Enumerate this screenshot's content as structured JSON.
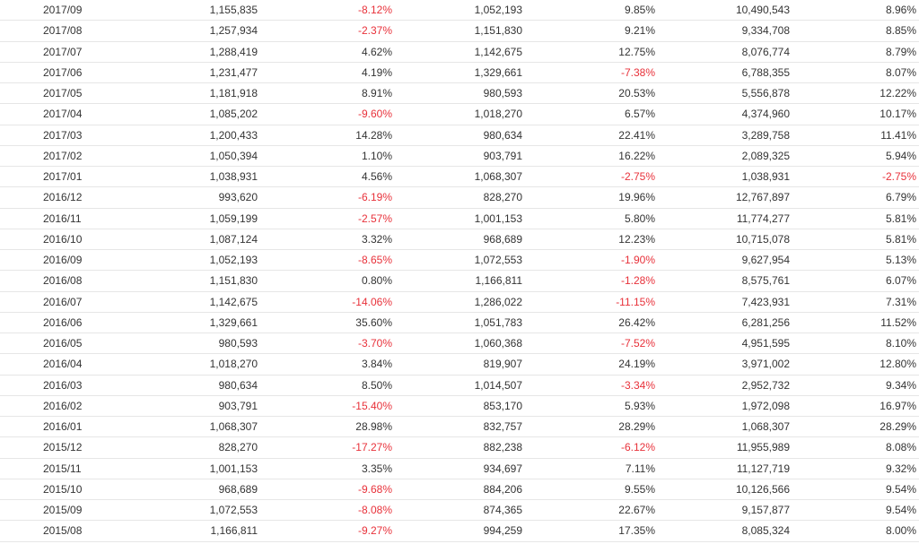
{
  "table": {
    "rows": [
      {
        "month": "2017/09",
        "revenue": "1,155,835",
        "mom": "-8.12%",
        "last_year": "1,052,193",
        "yoy": "9.85%",
        "cumulative": "10,490,543",
        "cum_yoy": "8.96%"
      },
      {
        "month": "2017/08",
        "revenue": "1,257,934",
        "mom": "-2.37%",
        "last_year": "1,151,830",
        "yoy": "9.21%",
        "cumulative": "9,334,708",
        "cum_yoy": "8.85%"
      },
      {
        "month": "2017/07",
        "revenue": "1,288,419",
        "mom": "4.62%",
        "last_year": "1,142,675",
        "yoy": "12.75%",
        "cumulative": "8,076,774",
        "cum_yoy": "8.79%"
      },
      {
        "month": "2017/06",
        "revenue": "1,231,477",
        "mom": "4.19%",
        "last_year": "1,329,661",
        "yoy": "-7.38%",
        "cumulative": "6,788,355",
        "cum_yoy": "8.07%"
      },
      {
        "month": "2017/05",
        "revenue": "1,181,918",
        "mom": "8.91%",
        "last_year": "980,593",
        "yoy": "20.53%",
        "cumulative": "5,556,878",
        "cum_yoy": "12.22%"
      },
      {
        "month": "2017/04",
        "revenue": "1,085,202",
        "mom": "-9.60%",
        "last_year": "1,018,270",
        "yoy": "6.57%",
        "cumulative": "4,374,960",
        "cum_yoy": "10.17%"
      },
      {
        "month": "2017/03",
        "revenue": "1,200,433",
        "mom": "14.28%",
        "last_year": "980,634",
        "yoy": "22.41%",
        "cumulative": "3,289,758",
        "cum_yoy": "11.41%"
      },
      {
        "month": "2017/02",
        "revenue": "1,050,394",
        "mom": "1.10%",
        "last_year": "903,791",
        "yoy": "16.22%",
        "cumulative": "2,089,325",
        "cum_yoy": "5.94%"
      },
      {
        "month": "2017/01",
        "revenue": "1,038,931",
        "mom": "4.56%",
        "last_year": "1,068,307",
        "yoy": "-2.75%",
        "cumulative": "1,038,931",
        "cum_yoy": "-2.75%"
      },
      {
        "month": "2016/12",
        "revenue": "993,620",
        "mom": "-6.19%",
        "last_year": "828,270",
        "yoy": "19.96%",
        "cumulative": "12,767,897",
        "cum_yoy": "6.79%"
      },
      {
        "month": "2016/11",
        "revenue": "1,059,199",
        "mom": "-2.57%",
        "last_year": "1,001,153",
        "yoy": "5.80%",
        "cumulative": "11,774,277",
        "cum_yoy": "5.81%"
      },
      {
        "month": "2016/10",
        "revenue": "1,087,124",
        "mom": "3.32%",
        "last_year": "968,689",
        "yoy": "12.23%",
        "cumulative": "10,715,078",
        "cum_yoy": "5.81%"
      },
      {
        "month": "2016/09",
        "revenue": "1,052,193",
        "mom": "-8.65%",
        "last_year": "1,072,553",
        "yoy": "-1.90%",
        "cumulative": "9,627,954",
        "cum_yoy": "5.13%"
      },
      {
        "month": "2016/08",
        "revenue": "1,151,830",
        "mom": "0.80%",
        "last_year": "1,166,811",
        "yoy": "-1.28%",
        "cumulative": "8,575,761",
        "cum_yoy": "6.07%"
      },
      {
        "month": "2016/07",
        "revenue": "1,142,675",
        "mom": "-14.06%",
        "last_year": "1,286,022",
        "yoy": "-11.15%",
        "cumulative": "7,423,931",
        "cum_yoy": "7.31%"
      },
      {
        "month": "2016/06",
        "revenue": "1,329,661",
        "mom": "35.60%",
        "last_year": "1,051,783",
        "yoy": "26.42%",
        "cumulative": "6,281,256",
        "cum_yoy": "11.52%"
      },
      {
        "month": "2016/05",
        "revenue": "980,593",
        "mom": "-3.70%",
        "last_year": "1,060,368",
        "yoy": "-7.52%",
        "cumulative": "4,951,595",
        "cum_yoy": "8.10%"
      },
      {
        "month": "2016/04",
        "revenue": "1,018,270",
        "mom": "3.84%",
        "last_year": "819,907",
        "yoy": "24.19%",
        "cumulative": "3,971,002",
        "cum_yoy": "12.80%"
      },
      {
        "month": "2016/03",
        "revenue": "980,634",
        "mom": "8.50%",
        "last_year": "1,014,507",
        "yoy": "-3.34%",
        "cumulative": "2,952,732",
        "cum_yoy": "9.34%"
      },
      {
        "month": "2016/02",
        "revenue": "903,791",
        "mom": "-15.40%",
        "last_year": "853,170",
        "yoy": "5.93%",
        "cumulative": "1,972,098",
        "cum_yoy": "16.97%"
      },
      {
        "month": "2016/01",
        "revenue": "1,068,307",
        "mom": "28.98%",
        "last_year": "832,757",
        "yoy": "28.29%",
        "cumulative": "1,068,307",
        "cum_yoy": "28.29%"
      },
      {
        "month": "2015/12",
        "revenue": "828,270",
        "mom": "-17.27%",
        "last_year": "882,238",
        "yoy": "-6.12%",
        "cumulative": "11,955,989",
        "cum_yoy": "8.08%"
      },
      {
        "month": "2015/11",
        "revenue": "1,001,153",
        "mom": "3.35%",
        "last_year": "934,697",
        "yoy": "7.11%",
        "cumulative": "11,127,719",
        "cum_yoy": "9.32%"
      },
      {
        "month": "2015/10",
        "revenue": "968,689",
        "mom": "-9.68%",
        "last_year": "884,206",
        "yoy": "9.55%",
        "cumulative": "10,126,566",
        "cum_yoy": "9.54%"
      },
      {
        "month": "2015/09",
        "revenue": "1,072,553",
        "mom": "-8.08%",
        "last_year": "874,365",
        "yoy": "22.67%",
        "cumulative": "9,157,877",
        "cum_yoy": "9.54%"
      },
      {
        "month": "2015/08",
        "revenue": "1,166,811",
        "mom": "-9.27%",
        "last_year": "994,259",
        "yoy": "17.35%",
        "cumulative": "8,085,324",
        "cum_yoy": "8.00%"
      }
    ]
  },
  "colors": {
    "text": "#333333",
    "negative": "#e8313a",
    "row_border": "#e6e6e6"
  }
}
